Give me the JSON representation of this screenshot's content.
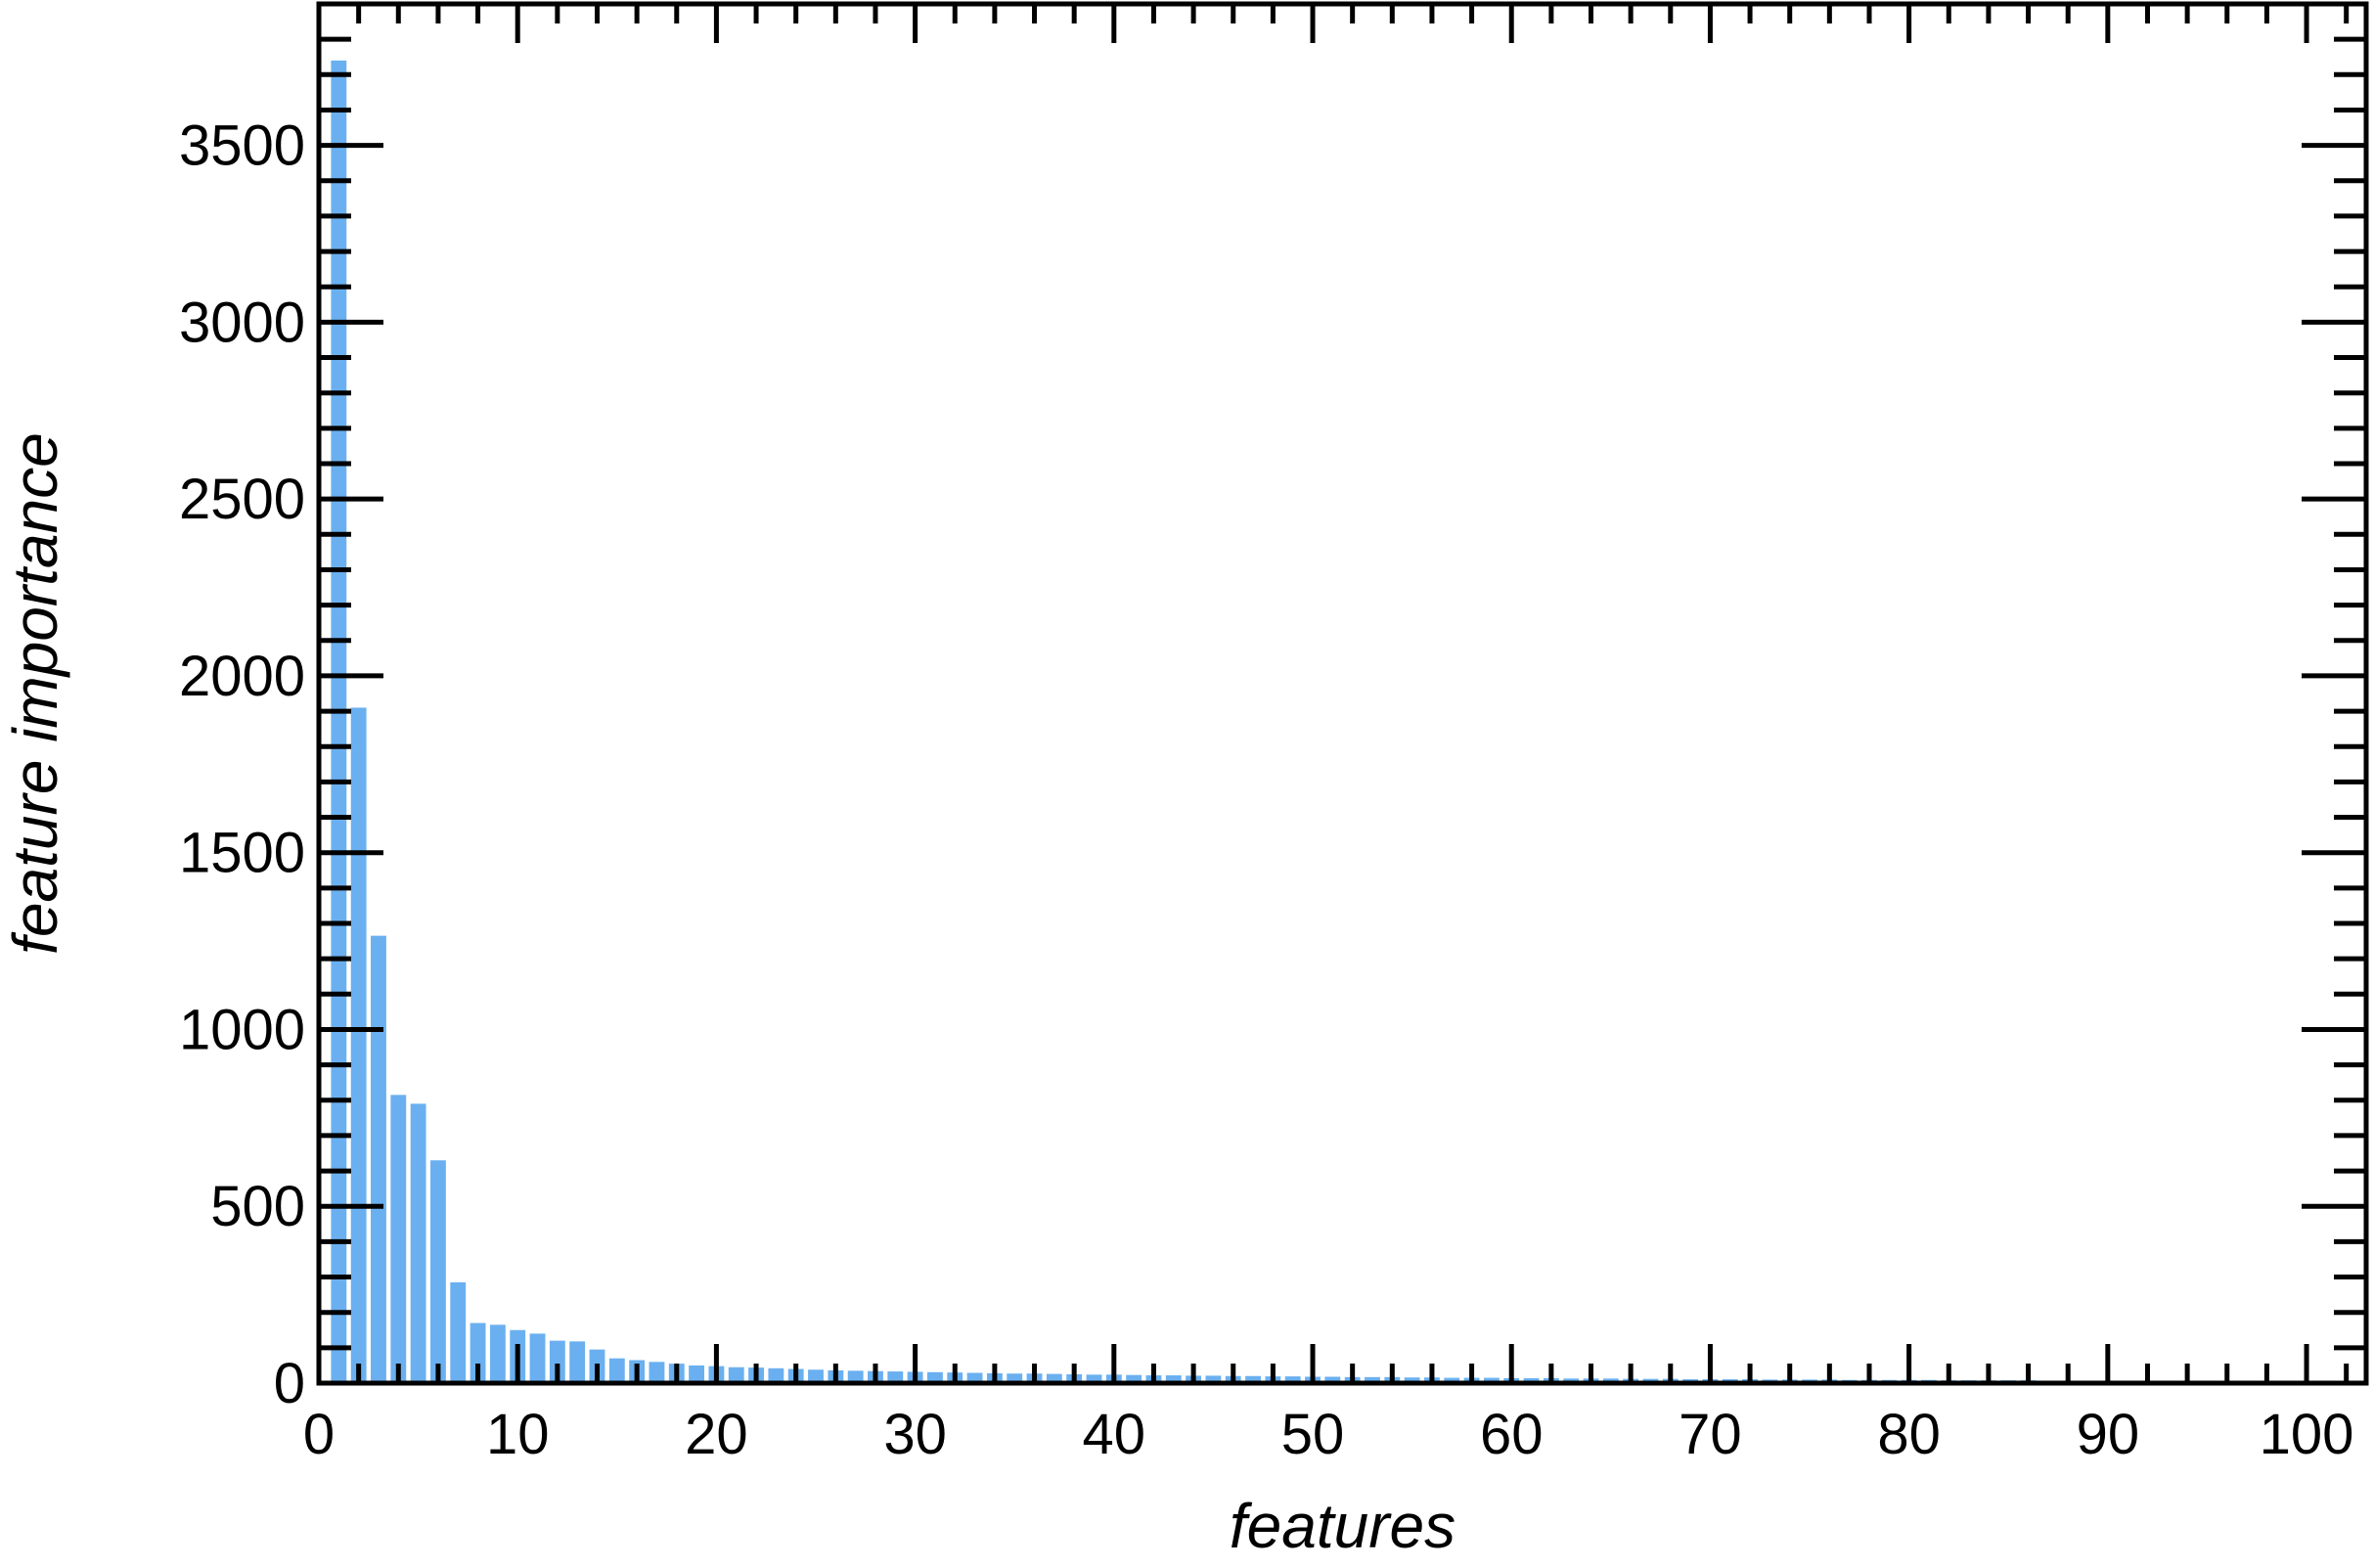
{
  "chart_data": {
    "type": "bar",
    "title": "",
    "xlabel": "features",
    "ylabel": "feature importance",
    "xlim": [
      0,
      103
    ],
    "ylim": [
      0,
      3900
    ],
    "x_ticks": [
      0,
      10,
      20,
      30,
      40,
      50,
      60,
      70,
      80,
      90,
      100
    ],
    "x_tick_labels": [
      "0",
      "10",
      "20",
      "30",
      "40",
      "50",
      "60",
      "70",
      "80",
      "90",
      "100"
    ],
    "y_ticks": [
      0,
      500,
      1000,
      1500,
      2000,
      2500,
      3000,
      3500
    ],
    "y_tick_labels": [
      "0",
      "500",
      "1000",
      "1500",
      "2000",
      "2500",
      "3000",
      "3500"
    ],
    "grid": false,
    "legend": "none",
    "bar_color": "#6ab0f0",
    "x": [
      1,
      2,
      3,
      4,
      5,
      6,
      7,
      8,
      9,
      10,
      11,
      12,
      13,
      14,
      15,
      16,
      17,
      18,
      19,
      20,
      21,
      22,
      23,
      24,
      25,
      26,
      27,
      28,
      29,
      30,
      31,
      32,
      33,
      34,
      35,
      36,
      37,
      38,
      39,
      40,
      41,
      42,
      43,
      44,
      45,
      46,
      47,
      48,
      49,
      50,
      51,
      52,
      53,
      54,
      55,
      56,
      57,
      58,
      59,
      60,
      61,
      62,
      63,
      64,
      65,
      66,
      67,
      68,
      69,
      70,
      71,
      72,
      73,
      74,
      75,
      76,
      77,
      78,
      79,
      80,
      81,
      82,
      83,
      84,
      85,
      86,
      87,
      88,
      89,
      90,
      91,
      92,
      93,
      94,
      95,
      96,
      97,
      98,
      99,
      100,
      101,
      102
    ],
    "values": [
      3740,
      1910,
      1265,
      815,
      790,
      630,
      285,
      170,
      165,
      150,
      140,
      120,
      118,
      95,
      70,
      65,
      60,
      55,
      50,
      48,
      45,
      44,
      42,
      40,
      38,
      36,
      35,
      34,
      33,
      32,
      31,
      30,
      29,
      28,
      27,
      27,
      26,
      25,
      24,
      24,
      23,
      22,
      22,
      21,
      21,
      20,
      20,
      19,
      19,
      18,
      18,
      17,
      17,
      17,
      16,
      16,
      15,
      15,
      15,
      14,
      14,
      14,
      13,
      13,
      13,
      12,
      12,
      12,
      11,
      11,
      11,
      11,
      10,
      10,
      10,
      10,
      9,
      9,
      9,
      9,
      9,
      8,
      8,
      8,
      8,
      8,
      7,
      7,
      7,
      7,
      7,
      6,
      6,
      6,
      6,
      6,
      5,
      5,
      5,
      5,
      5,
      5
    ]
  }
}
